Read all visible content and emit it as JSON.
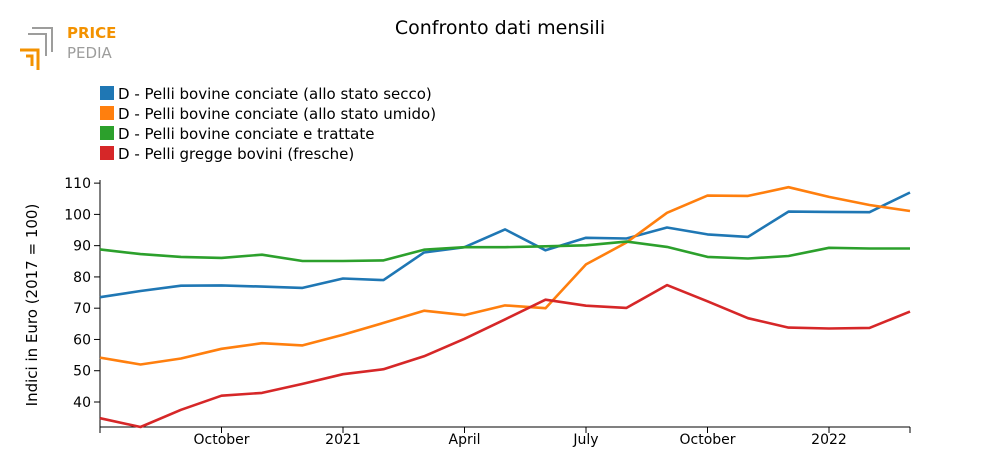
{
  "logo": {
    "line1": "PRICE",
    "line2": "PEDIA",
    "color_primary": "#f39200",
    "color_secondary": "#9d9d9c"
  },
  "chart_data": {
    "type": "line",
    "title": "Confronto dati mensili",
    "xlabel": "",
    "ylabel": "Indici in Euro (2017 = 100)",
    "ylim": [
      32,
      111
    ],
    "yticks": [
      40,
      50,
      60,
      70,
      80,
      90,
      100,
      110
    ],
    "x": [
      "2020-07",
      "2020-08",
      "2020-09",
      "2020-10",
      "2020-11",
      "2020-12",
      "2021-01",
      "2021-02",
      "2021-03",
      "2021-04",
      "2021-05",
      "2021-06",
      "2021-07",
      "2021-08",
      "2021-09",
      "2021-10",
      "2021-11",
      "2021-12",
      "2022-01",
      "2022-02",
      "2022-03"
    ],
    "xticks": [
      {
        "at": "2020-10",
        "label": "October"
      },
      {
        "at": "2021-01",
        "label": "2021"
      },
      {
        "at": "2021-04",
        "label": "April"
      },
      {
        "at": "2021-07",
        "label": "July"
      },
      {
        "at": "2021-10",
        "label": "October"
      },
      {
        "at": "2022-01",
        "label": "2022"
      }
    ],
    "legend_position": "top-left",
    "grid": false,
    "series": [
      {
        "name": "D - Pelli bovine conciate (allo stato secco)",
        "color": "#1f77b4",
        "values": [
          73.5,
          75.5,
          77.2,
          77.3,
          76.9,
          76.5,
          79.5,
          79.0,
          87.8,
          89.5,
          95.2,
          88.5,
          92.5,
          92.3,
          95.8,
          93.6,
          92.8,
          100.9,
          100.8,
          100.7,
          107.0
        ]
      },
      {
        "name": "D - Pelli bovine conciate (allo stato umido)",
        "color": "#ff7f0e",
        "values": [
          54.2,
          52.0,
          53.9,
          57.0,
          58.8,
          58.1,
          61.5,
          65.3,
          69.2,
          67.8,
          70.9,
          70.0,
          84.0,
          91.0,
          100.5,
          106.0,
          105.9,
          108.7,
          105.6,
          103.0,
          101.1
        ]
      },
      {
        "name": "D - Pelli bovine conciate e trattate",
        "color": "#2ca02c",
        "values": [
          88.8,
          87.3,
          86.4,
          86.1,
          87.1,
          85.1,
          85.1,
          85.3,
          88.7,
          89.5,
          89.5,
          89.8,
          90.1,
          91.3,
          89.6,
          86.4,
          85.9,
          86.7,
          89.3,
          89.1,
          89.1
        ]
      },
      {
        "name": "D - Pelli gregge bovini (fresche)",
        "color": "#d62728",
        "values": [
          34.8,
          32.0,
          37.5,
          42.0,
          42.9,
          45.8,
          48.9,
          50.5,
          54.6,
          60.2,
          66.4,
          72.7,
          70.8,
          70.1,
          77.4,
          72.2,
          66.8,
          63.8,
          63.5,
          63.7,
          68.9
        ]
      }
    ]
  }
}
